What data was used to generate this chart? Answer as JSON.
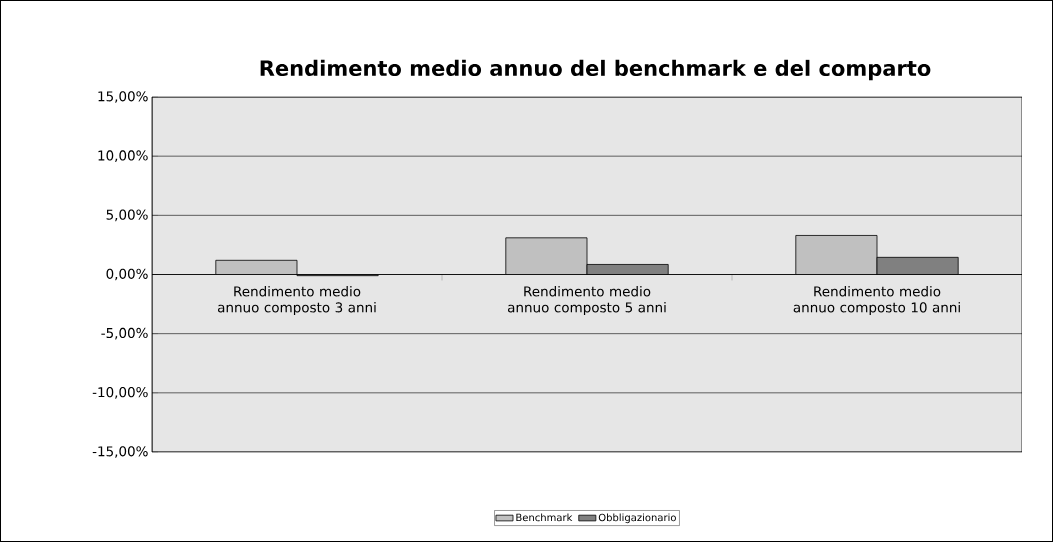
{
  "chart_data": {
    "type": "bar",
    "title": "Rendimento medio annuo del benchmark e del comparto",
    "categories": [
      "Rendimento medio annuo composto 3 anni",
      "Rendimento medio annuo composto 5 anni",
      "Rendimento medio annuo composto 10 anni"
    ],
    "series": [
      {
        "name": "Benchmark",
        "color": "#c0c0c0",
        "values": [
          1.2,
          3.1,
          3.3
        ]
      },
      {
        "name": "Obbligazionario",
        "color": "#808080",
        "values": [
          -0.1,
          0.85,
          1.45
        ]
      }
    ],
    "ylim": [
      -15,
      15
    ],
    "yticks": [
      {
        "value": -15,
        "label": "-15,00%"
      },
      {
        "value": -10,
        "label": "-10,00%"
      },
      {
        "value": -5,
        "label": "-5,00%"
      },
      {
        "value": 0,
        "label": "0,00%"
      },
      {
        "value": 5,
        "label": "5,00%"
      },
      {
        "value": 10,
        "label": "10,00%"
      },
      {
        "value": 15,
        "label": "15,00%"
      }
    ],
    "grid": "y",
    "legend": "bottom"
  }
}
